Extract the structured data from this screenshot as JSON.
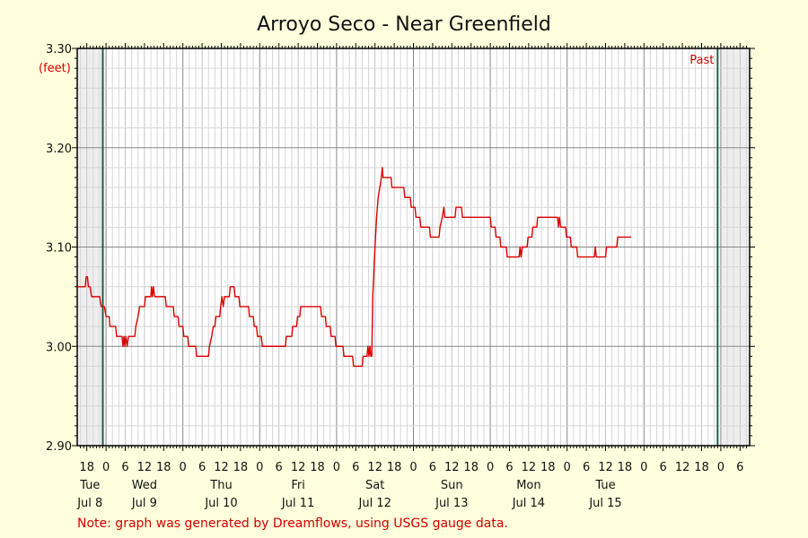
{
  "chart_data": {
    "type": "line",
    "title": "Arroyo Seco - Near Greenfield",
    "ylabel_unit": "(feet)",
    "ylim": [
      2.9,
      3.3
    ],
    "y_ticks": [
      2.9,
      3.0,
      3.1,
      3.2,
      3.3
    ],
    "y_tick_labels": [
      "2.90",
      "3.00",
      "3.10",
      "3.20",
      "3.30"
    ],
    "x_range_hours": [
      -9,
      201
    ],
    "x_ticks": [
      {
        "h": -6,
        "label": "18"
      },
      {
        "h": 0,
        "label": "0"
      },
      {
        "h": 6,
        "label": "6"
      },
      {
        "h": 12,
        "label": "12"
      },
      {
        "h": 18,
        "label": "18"
      },
      {
        "h": 24,
        "label": "0"
      },
      {
        "h": 30,
        "label": "6"
      },
      {
        "h": 36,
        "label": "12"
      },
      {
        "h": 42,
        "label": "18"
      },
      {
        "h": 48,
        "label": "0"
      },
      {
        "h": 54,
        "label": "6"
      },
      {
        "h": 60,
        "label": "12"
      },
      {
        "h": 66,
        "label": "18"
      },
      {
        "h": 72,
        "label": "0"
      },
      {
        "h": 78,
        "label": "6"
      },
      {
        "h": 84,
        "label": "12"
      },
      {
        "h": 90,
        "label": "18"
      },
      {
        "h": 96,
        "label": "0"
      },
      {
        "h": 102,
        "label": "6"
      },
      {
        "h": 108,
        "label": "12"
      },
      {
        "h": 114,
        "label": "18"
      },
      {
        "h": 120,
        "label": "0"
      },
      {
        "h": 126,
        "label": "6"
      },
      {
        "h": 132,
        "label": "12"
      },
      {
        "h": 138,
        "label": "18"
      },
      {
        "h": 144,
        "label": "0"
      },
      {
        "h": 150,
        "label": "6"
      },
      {
        "h": 156,
        "label": "12"
      },
      {
        "h": 162,
        "label": "18"
      },
      {
        "h": 168,
        "label": "0"
      },
      {
        "h": 174,
        "label": "6"
      },
      {
        "h": 180,
        "label": "12"
      },
      {
        "h": 186,
        "label": "18"
      },
      {
        "h": 192,
        "label": "0"
      },
      {
        "h": 198,
        "label": "6"
      }
    ],
    "day_labels": [
      {
        "h": -5,
        "day": "Tue",
        "date": "Jul 8"
      },
      {
        "h": 12,
        "day": "Wed",
        "date": "Jul 9"
      },
      {
        "h": 36,
        "day": "Thu",
        "date": "Jul 10"
      },
      {
        "h": 60,
        "day": "Fri",
        "date": "Jul 11"
      },
      {
        "h": 84,
        "day": "Sat",
        "date": "Jul 12"
      },
      {
        "h": 108,
        "day": "Sun",
        "date": "Jul 13"
      },
      {
        "h": 132,
        "day": "Mon",
        "date": "Jul 14"
      },
      {
        "h": 156,
        "day": "Tue",
        "date": "Jul 15"
      }
    ],
    "shaded_regions_hours": [
      [
        -9,
        -1
      ],
      [
        192,
        201
      ]
    ],
    "markers_hours": [
      -1,
      191
    ],
    "past_label": "Past",
    "grid": true,
    "series": [
      {
        "color": "#dd0000",
        "points": [
          [
            -9,
            3.06
          ],
          [
            -6.5,
            3.06
          ],
          [
            -6.2,
            3.07
          ],
          [
            -5.8,
            3.07
          ],
          [
            -5.5,
            3.06
          ],
          [
            -5,
            3.06
          ],
          [
            -4.5,
            3.05
          ],
          [
            -2,
            3.05
          ],
          [
            -1.5,
            3.04
          ],
          [
            -0.5,
            3.04
          ],
          [
            0,
            3.03
          ],
          [
            1,
            3.03
          ],
          [
            1.2,
            3.02
          ],
          [
            3,
            3.02
          ],
          [
            3.3,
            3.01
          ],
          [
            5,
            3.01
          ],
          [
            5.3,
            3.0
          ],
          [
            5.6,
            3.01
          ],
          [
            5.9,
            3.0
          ],
          [
            6.2,
            3.01
          ],
          [
            6.6,
            3.0
          ],
          [
            7,
            3.01
          ],
          [
            9,
            3.01
          ],
          [
            9.3,
            3.02
          ],
          [
            10,
            3.03
          ],
          [
            10.5,
            3.04
          ],
          [
            12,
            3.04
          ],
          [
            12.3,
            3.05
          ],
          [
            14,
            3.05
          ],
          [
            14.2,
            3.06
          ],
          [
            14.5,
            3.05
          ],
          [
            14.8,
            3.06
          ],
          [
            15.2,
            3.05
          ],
          [
            18.5,
            3.05
          ],
          [
            18.8,
            3.04
          ],
          [
            21,
            3.04
          ],
          [
            21.3,
            3.03
          ],
          [
            22.5,
            3.03
          ],
          [
            22.8,
            3.02
          ],
          [
            24,
            3.02
          ],
          [
            24.3,
            3.01
          ],
          [
            25.5,
            3.01
          ],
          [
            25.8,
            3.0
          ],
          [
            28,
            3.0
          ],
          [
            28.3,
            2.99
          ],
          [
            32,
            2.99
          ],
          [
            32.3,
            3.0
          ],
          [
            33,
            3.01
          ],
          [
            33.5,
            3.02
          ],
          [
            34,
            3.02
          ],
          [
            34.3,
            3.03
          ],
          [
            35.5,
            3.03
          ],
          [
            35.8,
            3.04
          ],
          [
            36.2,
            3.05
          ],
          [
            36.6,
            3.04
          ],
          [
            37,
            3.05
          ],
          [
            38.5,
            3.05
          ],
          [
            38.8,
            3.06
          ],
          [
            40,
            3.06
          ],
          [
            40.3,
            3.05
          ],
          [
            41.5,
            3.05
          ],
          [
            41.8,
            3.04
          ],
          [
            44.5,
            3.04
          ],
          [
            44.8,
            3.03
          ],
          [
            46,
            3.03
          ],
          [
            46.3,
            3.02
          ],
          [
            47,
            3.02
          ],
          [
            47.3,
            3.01
          ],
          [
            48.5,
            3.01
          ],
          [
            48.8,
            3.0
          ],
          [
            56,
            3.0
          ],
          [
            56.3,
            3.01
          ],
          [
            58,
            3.01
          ],
          [
            58.3,
            3.02
          ],
          [
            59.5,
            3.02
          ],
          [
            59.8,
            3.03
          ],
          [
            60.5,
            3.03
          ],
          [
            60.8,
            3.04
          ],
          [
            67,
            3.04
          ],
          [
            67.3,
            3.03
          ],
          [
            68.5,
            3.03
          ],
          [
            68.8,
            3.02
          ],
          [
            70,
            3.02
          ],
          [
            70.3,
            3.01
          ],
          [
            71.5,
            3.01
          ],
          [
            71.8,
            3.0
          ],
          [
            74,
            3.0
          ],
          [
            74.3,
            2.99
          ],
          [
            77,
            2.99
          ],
          [
            77.3,
            2.98
          ],
          [
            80,
            2.98
          ],
          [
            80.3,
            2.99
          ],
          [
            81.5,
            2.99
          ],
          [
            81.8,
            3.0
          ],
          [
            82.1,
            2.99
          ],
          [
            82.4,
            3.0
          ],
          [
            82.7,
            2.99
          ],
          [
            83,
            2.99
          ],
          [
            83.3,
            3.05
          ],
          [
            84,
            3.1
          ],
          [
            84.5,
            3.13
          ],
          [
            85,
            3.15
          ],
          [
            85.5,
            3.16
          ],
          [
            86,
            3.17
          ],
          [
            86.3,
            3.18
          ],
          [
            86.5,
            3.17
          ],
          [
            89,
            3.17
          ],
          [
            89.3,
            3.16
          ],
          [
            93,
            3.16
          ],
          [
            93.3,
            3.15
          ],
          [
            95,
            3.15
          ],
          [
            95.3,
            3.14
          ],
          [
            96.5,
            3.14
          ],
          [
            96.8,
            3.13
          ],
          [
            98,
            3.13
          ],
          [
            98.3,
            3.12
          ],
          [
            101,
            3.12
          ],
          [
            101.3,
            3.11
          ],
          [
            104,
            3.11
          ],
          [
            104.3,
            3.12
          ],
          [
            105,
            3.13
          ],
          [
            105.5,
            3.14
          ],
          [
            105.8,
            3.13
          ],
          [
            109,
            3.13
          ],
          [
            109.3,
            3.14
          ],
          [
            111,
            3.14
          ],
          [
            111.3,
            3.13
          ],
          [
            120,
            3.13
          ],
          [
            120.3,
            3.12
          ],
          [
            121.5,
            3.12
          ],
          [
            121.8,
            3.11
          ],
          [
            123,
            3.11
          ],
          [
            123.3,
            3.1
          ],
          [
            125,
            3.1
          ],
          [
            125.3,
            3.09
          ],
          [
            129,
            3.09
          ],
          [
            129.3,
            3.1
          ],
          [
            129.6,
            3.09
          ],
          [
            130,
            3.1
          ],
          [
            131.5,
            3.1
          ],
          [
            131.8,
            3.11
          ],
          [
            133,
            3.11
          ],
          [
            133.3,
            3.12
          ],
          [
            134.5,
            3.12
          ],
          [
            134.8,
            3.13
          ],
          [
            141,
            3.13
          ],
          [
            141.3,
            3.12
          ],
          [
            141.6,
            3.13
          ],
          [
            142,
            3.12
          ],
          [
            143.5,
            3.12
          ],
          [
            143.8,
            3.11
          ],
          [
            145,
            3.11
          ],
          [
            145.3,
            3.1
          ],
          [
            147,
            3.1
          ],
          [
            147.3,
            3.09
          ],
          [
            152.5,
            3.09
          ],
          [
            152.8,
            3.1
          ],
          [
            153.1,
            3.09
          ],
          [
            156,
            3.09
          ],
          [
            156.3,
            3.1
          ],
          [
            159.5,
            3.1
          ],
          [
            159.8,
            3.11
          ],
          [
            164,
            3.11
          ]
        ]
      }
    ],
    "note": "Note: graph was generated by Dreamflows, using USGS gauge data."
  }
}
